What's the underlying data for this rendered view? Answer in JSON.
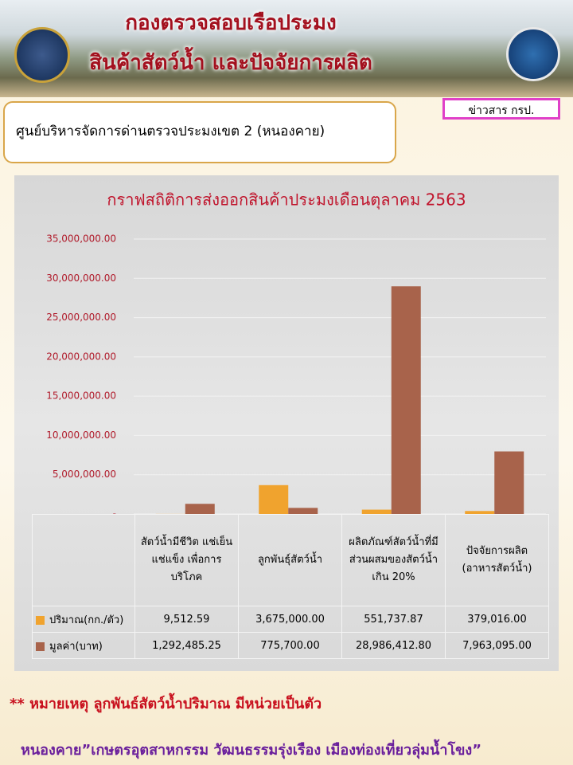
{
  "header": {
    "title_lines": [
      "กองตรวจสอบเรือประมง",
      "สินค้าสัตว์น้ำ และปัจจัยการผลิต"
    ],
    "badge": "ข่าวสาร กรป.",
    "subtitle": "ศูนย์บริหารจัดการด่านตรวจประมงเขต 2 (หนองคาย)"
  },
  "chart_data": {
    "type": "bar",
    "title": "กราฟสถิติการส่งออกสินค้าประมงเดือนตุลาคม  2563",
    "categories": [
      "สัตว์น้ำมีชีวิต แช่เย็น แช่แข็ง เพื่อการบริโภค",
      "ลูกพันธุ์สัตว์น้ำ",
      "ผลิตภัณฑ์สัตว์น้ำที่มีส่วนผสมของสัตว์น้ำเกิน 20%",
      "ปัจจัยการผลิต (อาหารสัตว์น้ำ)"
    ],
    "series": [
      {
        "name": "ปริมาณ(กก./ตัว)",
        "color": "#f0a32e",
        "values": [
          9512.59,
          3675000,
          551737.87,
          379016
        ],
        "value_labels": [
          "9,512.59",
          "3,675,000.00",
          "551,737.87",
          "379,016.00"
        ]
      },
      {
        "name": "มูลค่า(บาท)",
        "color": "#a8634b",
        "values": [
          1292485.25,
          775700,
          28986412.8,
          7963095
        ],
        "value_labels": [
          "1,292,485.25",
          "775,700.00",
          "28,986,412.80",
          "7,963,095.00"
        ]
      }
    ],
    "ylim": [
      0,
      35000000
    ],
    "yticks": [
      {
        "value": 0,
        "label": "-"
      },
      {
        "value": 5000000,
        "label": "5,000,000.00"
      },
      {
        "value": 10000000,
        "label": "10,000,000.00"
      },
      {
        "value": 15000000,
        "label": "15,000,000.00"
      },
      {
        "value": 20000000,
        "label": "20,000,000.00"
      },
      {
        "value": 25000000,
        "label": "25,000,000.00"
      },
      {
        "value": 30000000,
        "label": "30,000,000.00"
      },
      {
        "value": 35000000,
        "label": "35,000,000.00"
      }
    ],
    "grid": true
  },
  "notes": {
    "footnote": "** หมายเหตุ ลูกพันธ์สัตว์น้ำปริมาณ มีหน่วยเป็นตัว",
    "footer": "หนองคาย”เกษตรอุตสาหกรรม วัฒนธรรมรุ่งเรือง เมืองท่องเที่ยวลุ่มน้ำโขง”"
  }
}
